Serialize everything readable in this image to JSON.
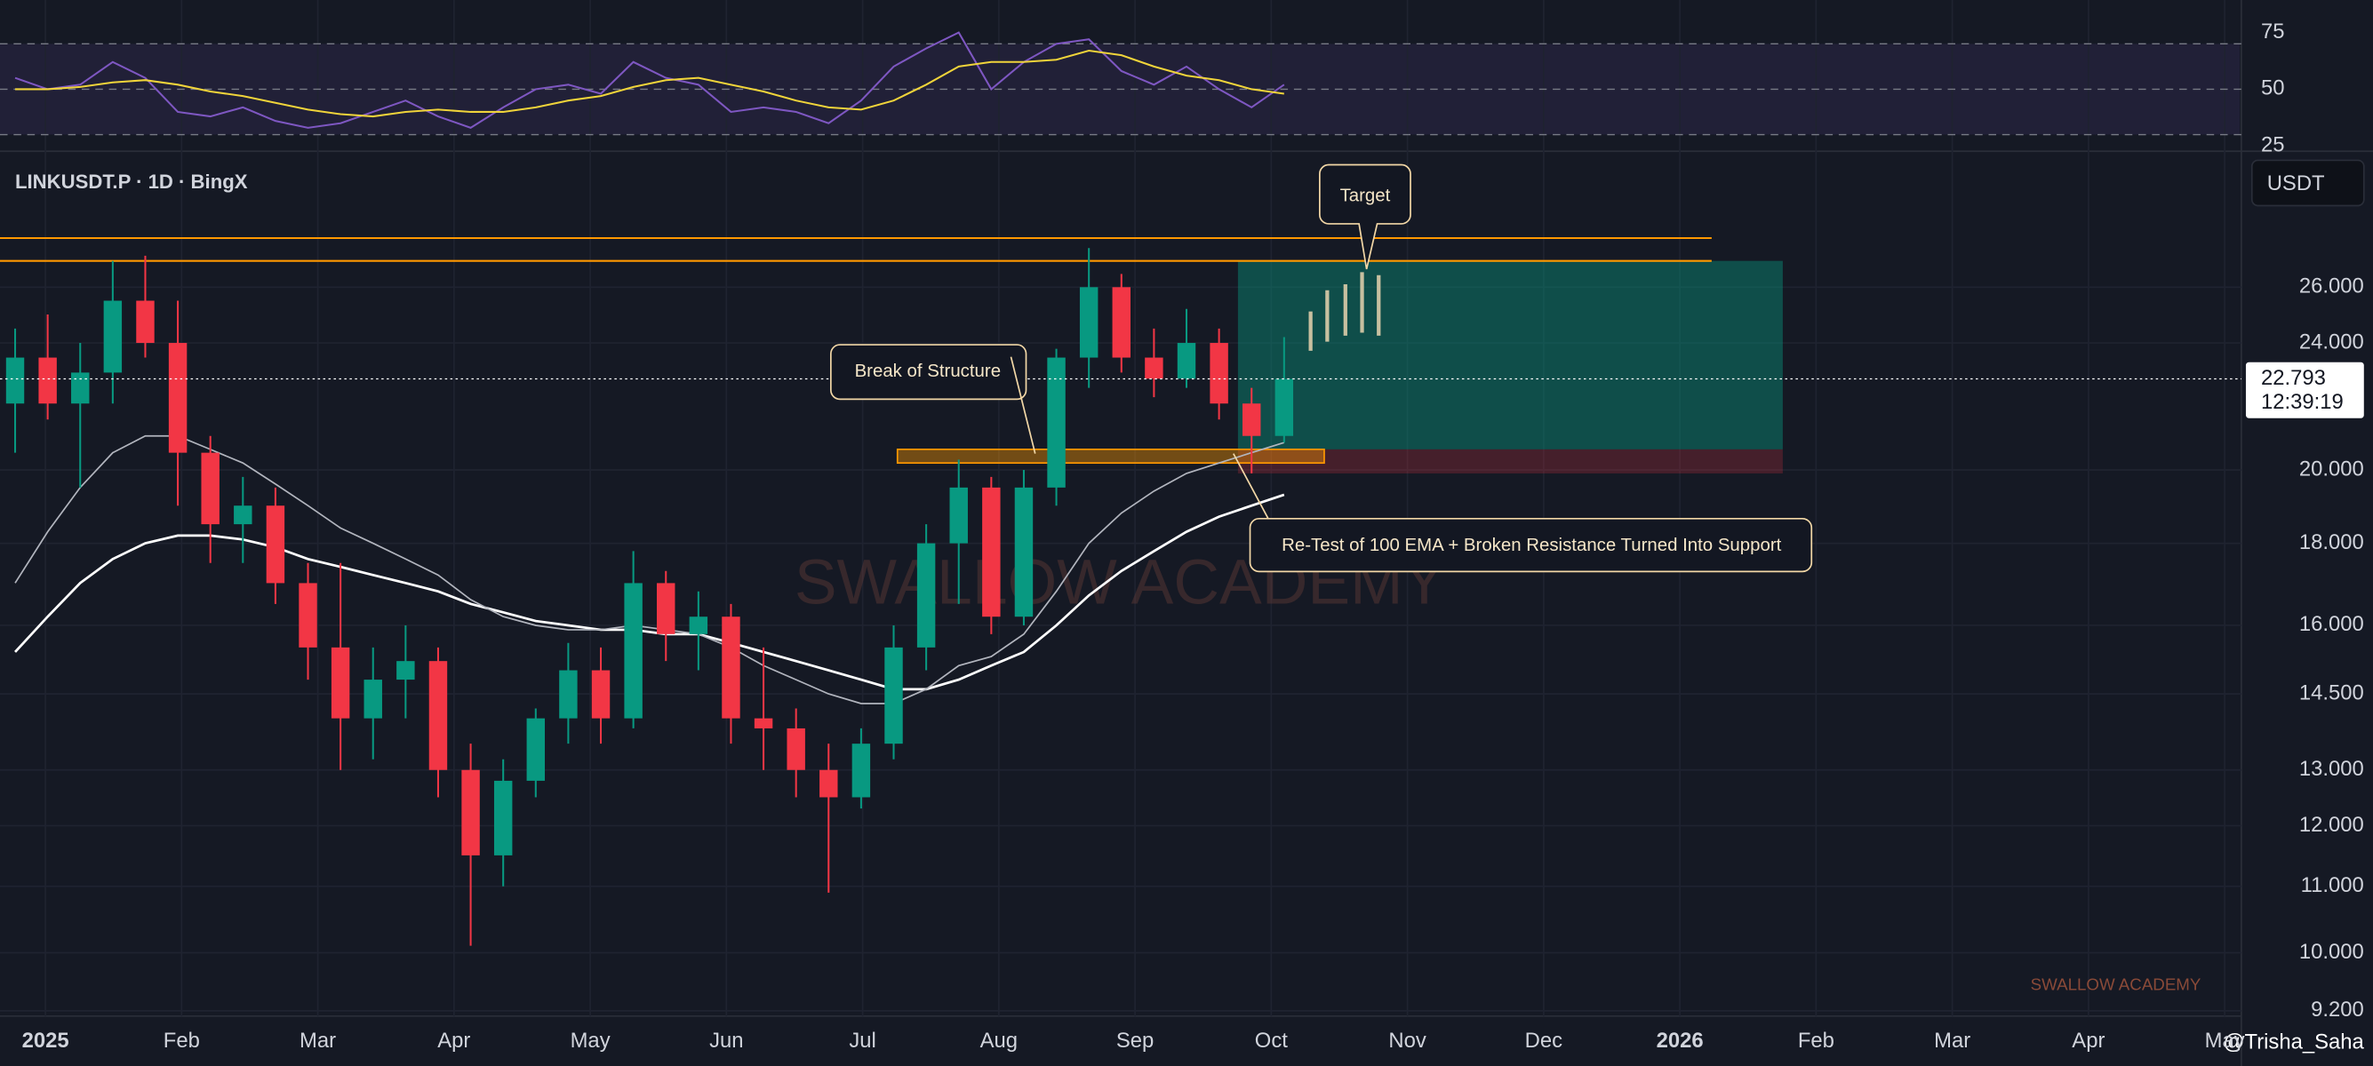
{
  "chart_data": {
    "type": "candlestick",
    "title": "LINKUSDT.P · 1D · BingX",
    "currency": "USDT",
    "log_scale": true,
    "grid": true,
    "up_color": "#089981",
    "down_color": "#f23645",
    "ylim": [
      9.13,
      31.4
    ],
    "yticks": [
      {
        "value": 9.2,
        "label": "9.200"
      },
      {
        "value": 10,
        "label": "10.000"
      },
      {
        "value": 11,
        "label": "11.000"
      },
      {
        "value": 12,
        "label": "12.000"
      },
      {
        "value": 13,
        "label": "13.000"
      },
      {
        "value": 14.5,
        "label": "14.500"
      },
      {
        "value": 16,
        "label": "16.000"
      },
      {
        "value": 18,
        "label": "18.000"
      },
      {
        "value": 20,
        "label": "20.000"
      },
      {
        "value": 24,
        "label": "24.000"
      },
      {
        "value": 26,
        "label": "26.000"
      }
    ],
    "xticks": [
      "2025",
      "Feb",
      "Mar",
      "Apr",
      "May",
      "Jun",
      "Jul",
      "Aug",
      "Sep",
      "Oct",
      "Nov",
      "Dec",
      "2026",
      "Feb",
      "Mar",
      "Apr",
      "May"
    ],
    "ohlc": {
      "open": [
        22,
        23.5,
        22,
        23,
        25.5,
        24,
        20.5,
        18.5,
        19,
        17,
        15.5,
        14,
        14.8,
        15.2,
        13,
        11.5,
        12.8,
        14,
        15,
        14,
        17,
        15.8,
        16.2,
        14,
        13.8,
        13,
        12.5,
        13.5,
        15.5,
        18,
        19.5,
        16.2,
        19.5,
        23.5,
        26,
        23.5,
        22.8,
        24,
        22,
        21
      ],
      "high": [
        24.5,
        25,
        24,
        27,
        27.2,
        25.5,
        21,
        19.8,
        19.5,
        17.5,
        17.5,
        15.5,
        16,
        15.5,
        13.5,
        13.2,
        14.2,
        15.6,
        15.5,
        17.8,
        17.3,
        16.8,
        16.5,
        15.5,
        14.2,
        13.5,
        13.8,
        16,
        18.5,
        20.3,
        19.8,
        20,
        23.8,
        27.5,
        26.5,
        24.5,
        25.2,
        24.5,
        22.5,
        24.2
      ],
      "low": [
        20.5,
        21.5,
        19.5,
        22,
        23.5,
        19,
        17.5,
        17.5,
        16.5,
        14.8,
        13,
        13.2,
        14,
        12.5,
        10.1,
        11,
        12.5,
        13.5,
        13.5,
        13.8,
        15.2,
        15,
        13.5,
        13,
        12.5,
        10.9,
        12.3,
        13.2,
        15,
        16.5,
        15.8,
        16,
        19,
        22.5,
        23,
        22.2,
        22.5,
        21.5,
        19.9,
        20.8
      ],
      "close": [
        23.5,
        22,
        23,
        25.5,
        24,
        20.5,
        18.5,
        19,
        17,
        15.5,
        14,
        14.8,
        15.2,
        13,
        11.5,
        12.8,
        14,
        15,
        14,
        17,
        15.8,
        16.2,
        14,
        13.8,
        13,
        12.5,
        13.5,
        15.5,
        18,
        19.5,
        16.2,
        19.5,
        23.5,
        26,
        23.5,
        22.8,
        24,
        22,
        21,
        22.793
      ]
    },
    "ema_lines": [
      {
        "color": "#ffffff",
        "values": [
          15.4,
          16.2,
          17,
          17.6,
          18,
          18.2,
          18.2,
          18.1,
          17.9,
          17.6,
          17.4,
          17.2,
          17,
          16.8,
          16.5,
          16.3,
          16.1,
          16,
          15.9,
          15.9,
          15.8,
          15.8,
          15.6,
          15.4,
          15.2,
          15,
          14.8,
          14.6,
          14.6,
          14.8,
          15.1,
          15.4,
          16,
          16.7,
          17.3,
          17.8,
          18.3,
          18.7,
          19,
          19.3
        ]
      },
      {
        "color": "#b2b5be",
        "values": [
          17,
          18.3,
          19.5,
          20.5,
          21,
          21,
          20.6,
          20.2,
          19.6,
          19,
          18.4,
          18,
          17.6,
          17.2,
          16.6,
          16.2,
          16,
          15.9,
          15.9,
          16,
          15.9,
          15.8,
          15.5,
          15.1,
          14.8,
          14.5,
          14.3,
          14.3,
          14.6,
          15.1,
          15.3,
          15.8,
          16.8,
          18,
          18.8,
          19.4,
          19.9,
          20.2,
          20.5,
          20.8
        ]
      }
    ],
    "last_price": 22.793,
    "countdown": "12:39:19",
    "resistance_levels": [
      27.9,
      27.0
    ],
    "support_zone": [
      20.2,
      20.6
    ],
    "target_zone": [
      20.6,
      27.0
    ],
    "stop_zone": [
      19.9,
      20.6
    ],
    "annotations": {
      "target": "Target",
      "bos": "Break of Structure",
      "retest": "Re-Test of 100 EMA + Broken Resistance Turned Into Support"
    },
    "watermark": "SWALLOW ACADEMY",
    "author": "@Trisha_Saha",
    "rsi": {
      "ylim": [
        22.7,
        89.3
      ],
      "yticks": [
        25,
        50,
        75
      ],
      "levels": [
        70,
        50,
        30
      ],
      "color": "#7e57c2",
      "ma_color": "#f0d43a",
      "values": [
        55,
        50,
        52,
        62,
        55,
        40,
        38,
        42,
        36,
        33,
        35,
        40,
        45,
        38,
        33,
        42,
        50,
        52,
        48,
        62,
        55,
        52,
        40,
        42,
        40,
        35,
        45,
        60,
        68,
        75,
        50,
        62,
        70,
        72,
        58,
        52,
        60,
        50,
        42,
        52
      ],
      "ma": [
        50,
        50,
        51,
        53,
        54,
        52,
        49,
        47,
        44,
        41,
        39,
        38,
        40,
        41,
        40,
        40,
        42,
        45,
        47,
        51,
        54,
        55,
        52,
        49,
        45,
        42,
        41,
        45,
        52,
        60,
        62,
        62,
        63,
        67,
        65,
        60,
        56,
        54,
        50,
        48
      ]
    }
  }
}
